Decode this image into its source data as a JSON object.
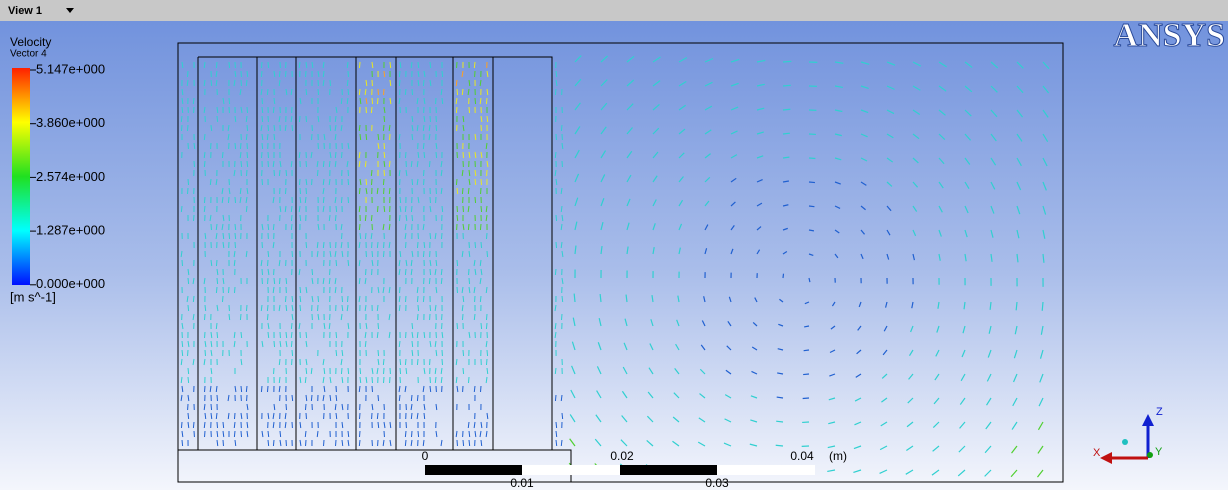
{
  "toolbar": {
    "view": "View 1"
  },
  "legend": {
    "title": "Velocity",
    "subtitle": "Vector 4",
    "labels": [
      "5.147e+000",
      "3.860e+000",
      "2.574e+000",
      "1.287e+000",
      "0.000e+000"
    ],
    "unit": "[m s^-1]"
  },
  "logo": "ANSYS",
  "scale": {
    "top_labels": [
      "0",
      "0.02",
      "0.04"
    ],
    "unit": "(m)",
    "bottom_labels": [
      "0.01",
      "0.03"
    ]
  },
  "axes": {
    "z": "Z",
    "x": "X",
    "y": "Y"
  }
}
